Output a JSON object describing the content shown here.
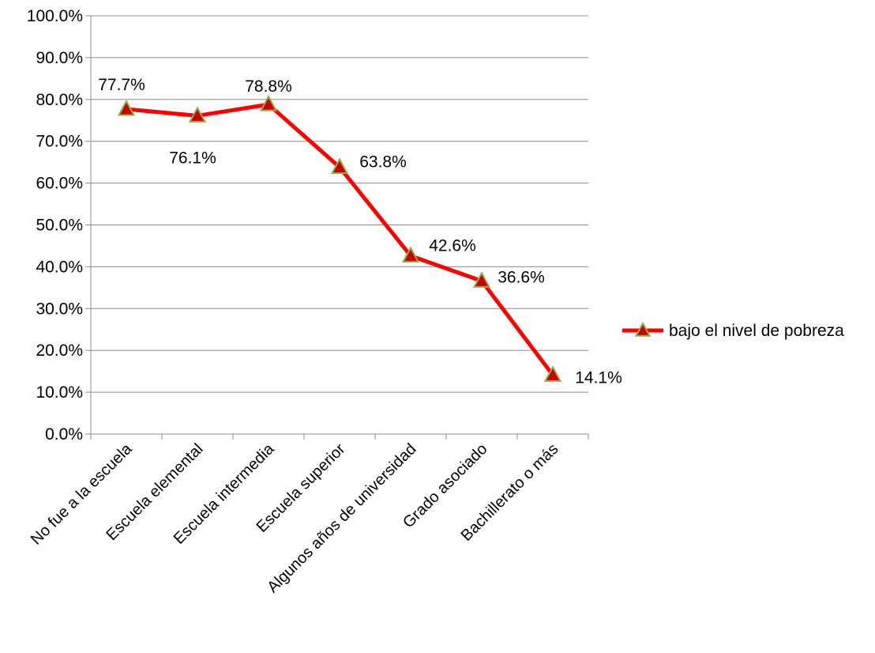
{
  "chart_data": {
    "type": "line",
    "title": "",
    "xlabel": "",
    "ylabel": "",
    "ylim": [
      0,
      100
    ],
    "y_ticks": [
      "0.0%",
      "10.0%",
      "20.0%",
      "30.0%",
      "40.0%",
      "50.0%",
      "60.0%",
      "70.0%",
      "80.0%",
      "90.0%",
      "100.0%"
    ],
    "grid": true,
    "legend_position": "right",
    "categories": [
      "No fue a la escuela",
      "Escuela elemental",
      "Escuela intermedia",
      "Escuela superior",
      "Algunos años de universidad",
      "Grado asociado",
      "Bachillerato o más"
    ],
    "series": [
      {
        "name": "bajo el nivel de pobreza",
        "values": [
          77.7,
          76.1,
          78.8,
          63.8,
          42.6,
          36.6,
          14.1
        ],
        "labels": [
          "77.7%",
          "76.1%",
          "78.8%",
          "63.8%",
          "42.6%",
          "36.6%",
          "14.1%"
        ],
        "line_color": "#ff0000",
        "marker": "triangle",
        "marker_fill": "#cc0000",
        "marker_stroke": "#8db04a"
      }
    ]
  }
}
